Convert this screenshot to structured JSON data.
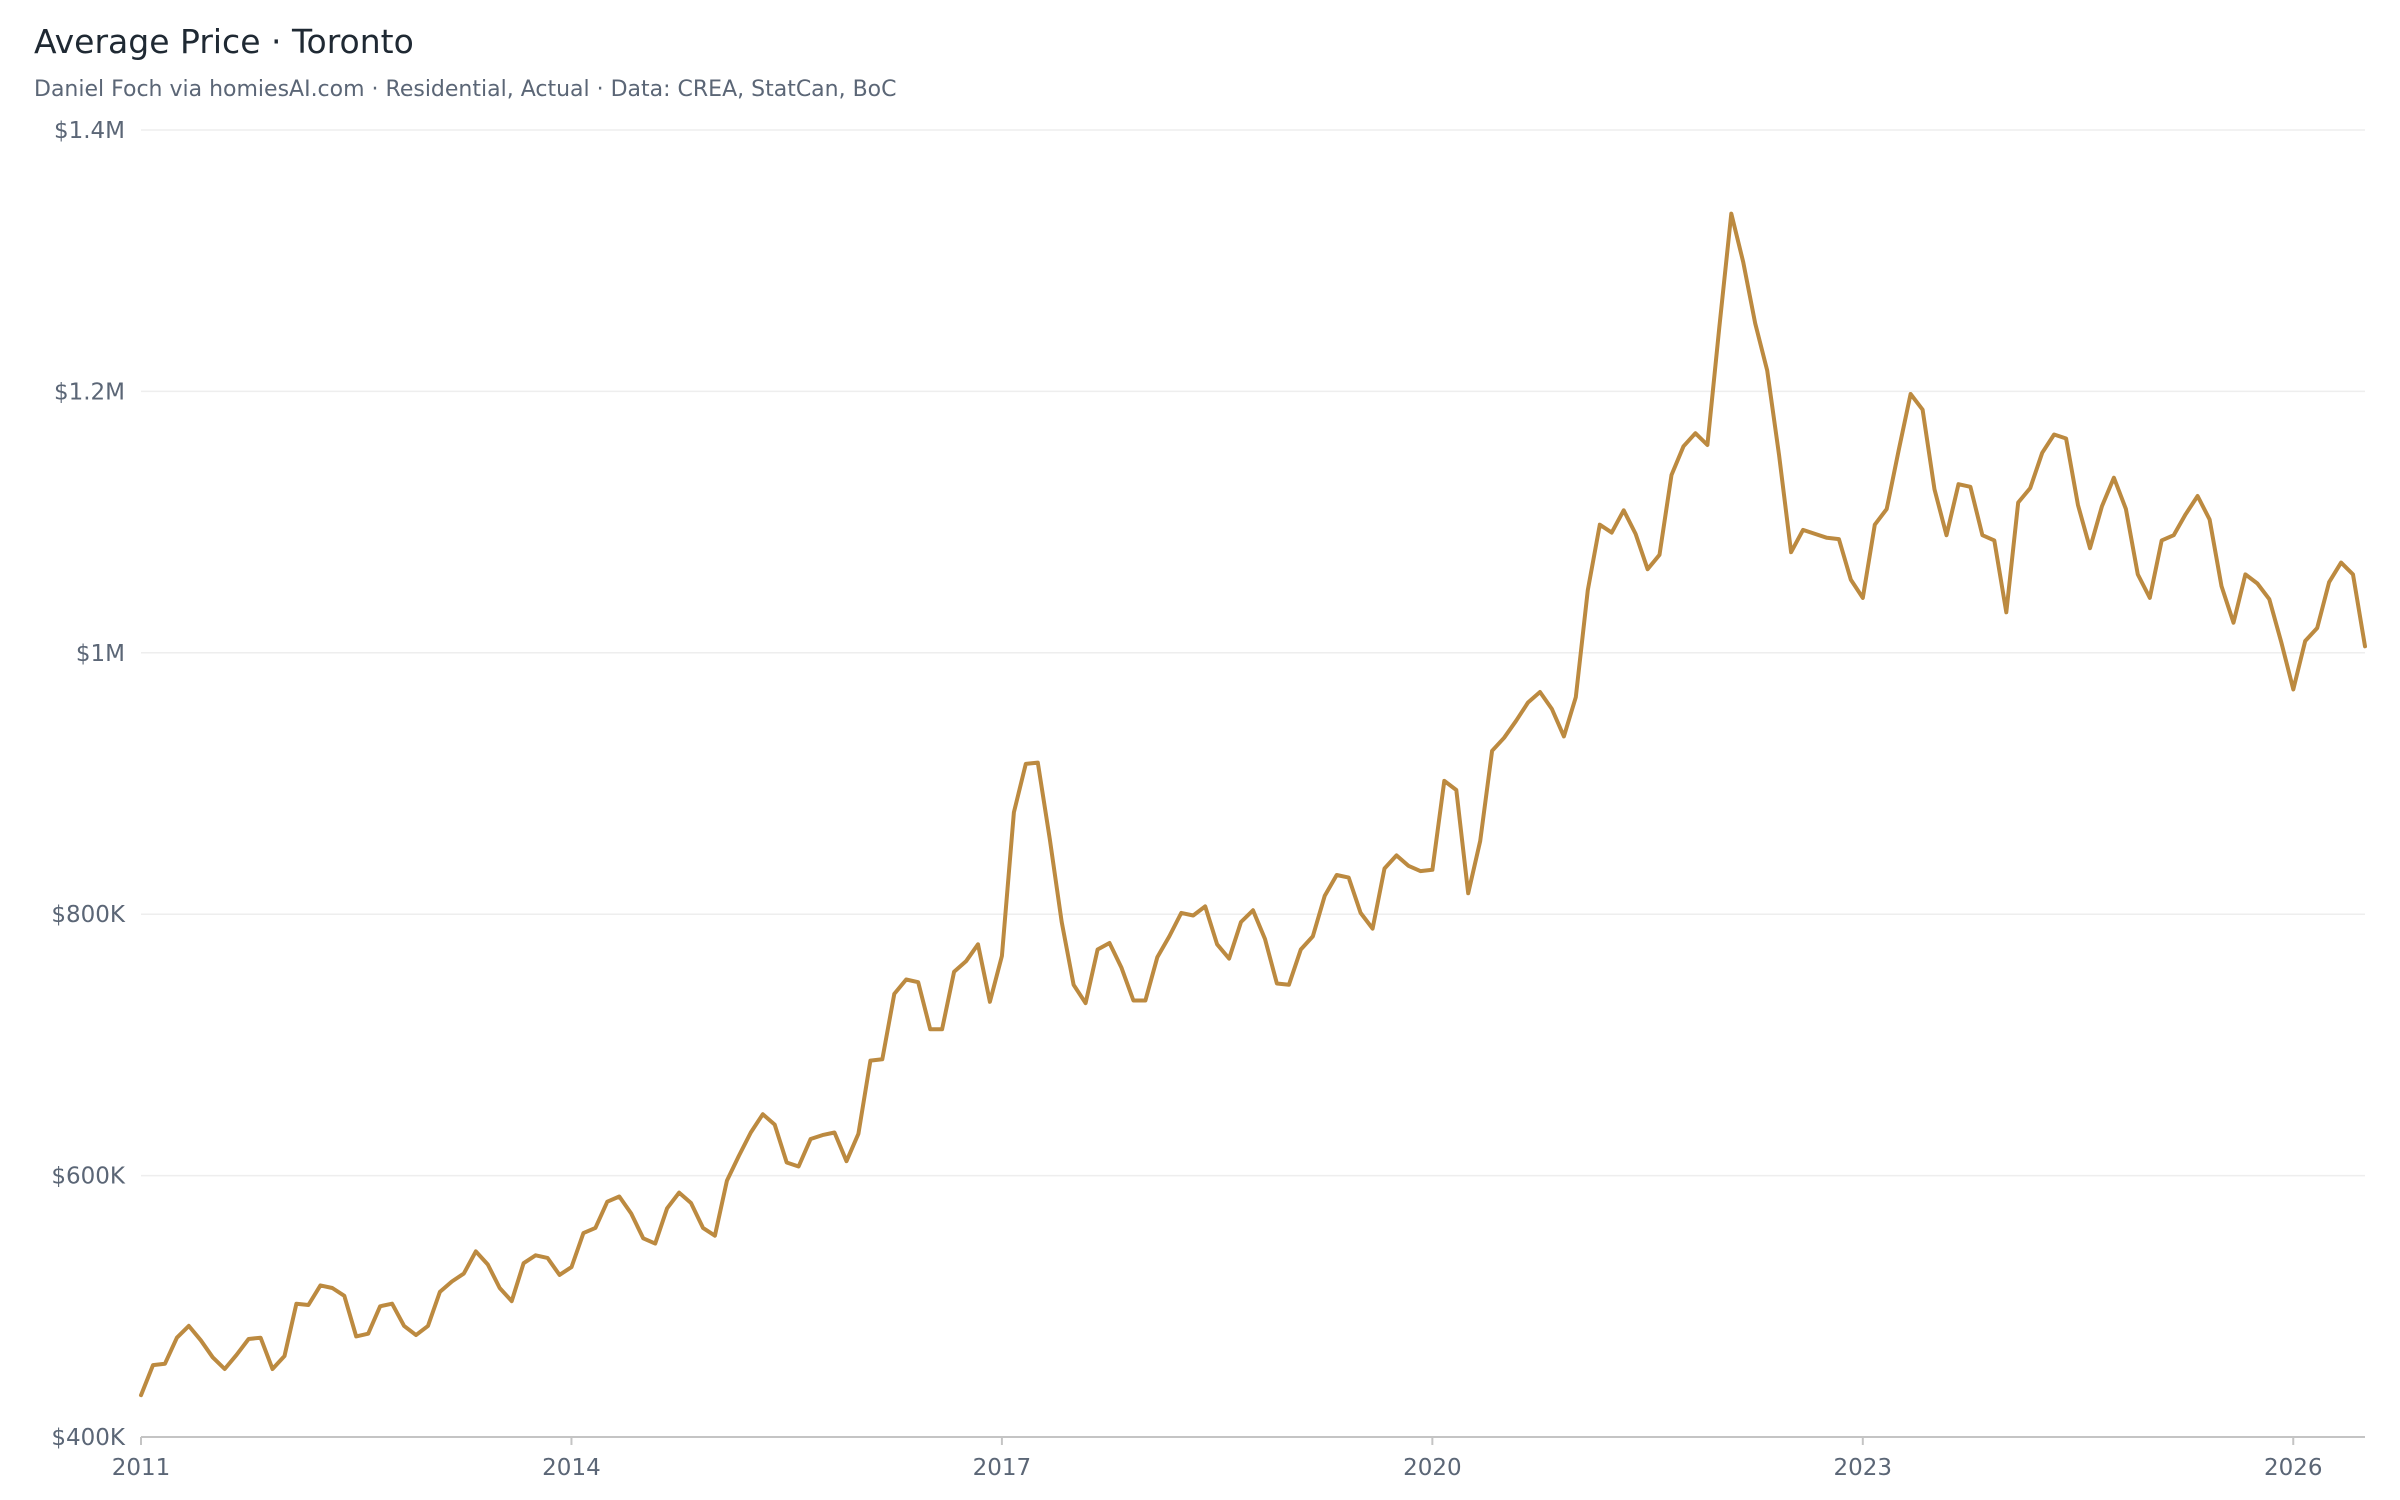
{
  "title": "Average Price · Toronto",
  "subtitle": "Daniel Foch via homiesAI.com  ·  Residential, Actual · Data: CREA, StatCan, BoC",
  "colors": {
    "line": "#BC8A40",
    "grid": "#eeeeee",
    "axis": "#c4c4c4",
    "tick_text": "#5b6676",
    "title_text": "#1f2933"
  },
  "chart_data": {
    "type": "line",
    "title": "Average Price · Toronto",
    "subtitle": "Daniel Foch via homiesAI.com  ·  Residential, Actual · Data: CREA, StatCan, BoC",
    "xlabel": "",
    "ylabel": "",
    "x_start": "2011-01",
    "x_end": "2026-07",
    "x_frequency": "monthly",
    "ylim": [
      400000,
      1400000
    ],
    "y_ticks": [
      {
        "value": 400000,
        "label": "$400K"
      },
      {
        "value": 600000,
        "label": "$600K"
      },
      {
        "value": 800000,
        "label": "$800K"
      },
      {
        "value": 1000000,
        "label": "$1M"
      },
      {
        "value": 1200000,
        "label": "$1.2M"
      },
      {
        "value": 1400000,
        "label": "$1.4M"
      }
    ],
    "x_ticks": [
      {
        "value": "2011-01",
        "label": "2011"
      },
      {
        "value": "2014-01",
        "label": "2014"
      },
      {
        "value": "2017-01",
        "label": "2017"
      },
      {
        "value": "2020-01",
        "label": "2020"
      },
      {
        "value": "2023-01",
        "label": "2023"
      },
      {
        "value": "2026-01",
        "label": "2026"
      }
    ],
    "grid": true,
    "legend": "none",
    "series": [
      {
        "name": "",
        "values": [
          432000,
          455000,
          456000,
          476000,
          485000,
          474000,
          461000,
          452000,
          463000,
          475000,
          476000,
          452000,
          462000,
          502000,
          501000,
          516000,
          514000,
          508000,
          477000,
          479000,
          500000,
          502000,
          485000,
          478000,
          485000,
          511000,
          519000,
          525000,
          542000,
          532000,
          514000,
          504000,
          533000,
          539000,
          537000,
          524000,
          530000,
          556000,
          560000,
          580000,
          584000,
          571000,
          552000,
          548000,
          575000,
          587000,
          579000,
          560000,
          554000,
          596000,
          615000,
          633000,
          647000,
          639000,
          610000,
          607000,
          628000,
          631000,
          633000,
          611000,
          632000,
          688000,
          689000,
          739000,
          750000,
          748000,
          712000,
          712000,
          756000,
          764000,
          777000,
          733000,
          768000,
          878000,
          915000,
          916000,
          858000,
          794000,
          746000,
          732000,
          773000,
          778000,
          759000,
          734000,
          734000,
          767000,
          783000,
          801000,
          799000,
          806000,
          777000,
          766000,
          794000,
          803000,
          781000,
          747000,
          746000,
          773000,
          783000,
          814000,
          830000,
          828000,
          801000,
          789000,
          835000,
          845000,
          837000,
          833000,
          834000,
          902000,
          895000,
          816000,
          856000,
          925000,
          935000,
          948000,
          962000,
          970000,
          957000,
          936000,
          966000,
          1048000,
          1098000,
          1092000,
          1109000,
          1091000,
          1064000,
          1075000,
          1136000,
          1158000,
          1168000,
          1159000,
          1249000,
          1336000,
          1299000,
          1252000,
          1216000,
          1151000,
          1077000,
          1094000,
          1091000,
          1088000,
          1087000,
          1056000,
          1042000,
          1098000,
          1110000,
          1155000,
          1198000,
          1186000,
          1125000,
          1090000,
          1129000,
          1127000,
          1090000,
          1086000,
          1031000,
          1115000,
          1126000,
          1153000,
          1167000,
          1164000,
          1113000,
          1080000,
          1112000,
          1134000,
          1110000,
          1060000,
          1042000,
          1086000,
          1090000,
          1106000,
          1120000,
          1102000,
          1051000,
          1023000,
          1060000,
          1053000,
          1041000,
          1008000,
          972000,
          1009000,
          1019000,
          1054000,
          1069000,
          1060000,
          1005000
        ]
      }
    ]
  }
}
